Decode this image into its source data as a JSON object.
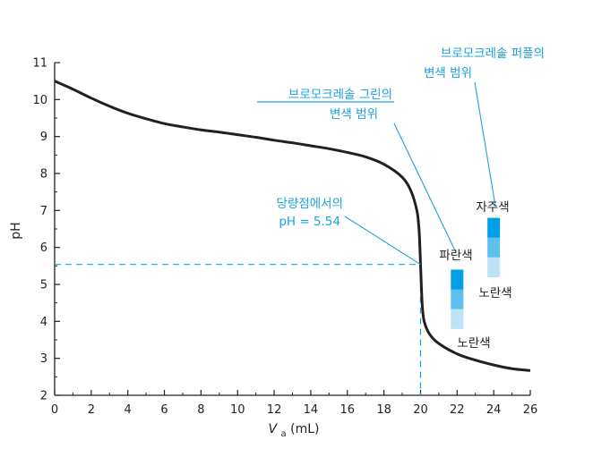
{
  "chart_data": {
    "type": "line",
    "xlabel_main": "V",
    "xlabel_sub": "a",
    "xlabel_unit": " (mL)",
    "ylabel": "pH",
    "xlim": [
      0,
      26
    ],
    "ylim": [
      2,
      11
    ],
    "x_ticks": [
      "0",
      "2",
      "4",
      "6",
      "8",
      "10",
      "12",
      "14",
      "16",
      "18",
      "20",
      "22",
      "24",
      "26"
    ],
    "y_ticks": [
      "2",
      "3",
      "4",
      "5",
      "6",
      "7",
      "8",
      "9",
      "10",
      "11"
    ],
    "grid": false,
    "series": [
      {
        "points": [
          [
            0,
            10.5
          ],
          [
            1,
            10.28
          ],
          [
            2,
            10.04
          ],
          [
            3,
            9.82
          ],
          [
            4,
            9.63
          ],
          [
            5,
            9.48
          ],
          [
            6,
            9.35
          ],
          [
            7,
            9.26
          ],
          [
            8,
            9.18
          ],
          [
            9,
            9.12
          ],
          [
            10,
            9.05
          ],
          [
            11,
            8.98
          ],
          [
            12,
            8.9
          ],
          [
            13,
            8.83
          ],
          [
            14,
            8.75
          ],
          [
            15,
            8.67
          ],
          [
            16,
            8.57
          ],
          [
            17,
            8.45
          ],
          [
            18,
            8.25
          ],
          [
            19,
            7.9
          ],
          [
            19.5,
            7.5
          ],
          [
            19.8,
            7.0
          ],
          [
            19.9,
            6.6
          ],
          [
            19.95,
            6.2
          ],
          [
            20.0,
            5.54
          ],
          [
            20.05,
            4.9
          ],
          [
            20.1,
            4.4
          ],
          [
            20.2,
            4.0
          ],
          [
            20.5,
            3.65
          ],
          [
            21,
            3.4
          ],
          [
            22,
            3.12
          ],
          [
            23,
            2.95
          ],
          [
            24,
            2.82
          ],
          [
            25,
            2.72
          ],
          [
            26,
            2.67
          ]
        ]
      }
    ],
    "equivalence": {
      "x": 20,
      "y": 5.54
    },
    "annotations": {
      "equivalence_label": [
        "당량점에서의",
        "pH = 5.54"
      ],
      "bcg_range": [
        "브로모크레솔 그린의",
        "변색 범위"
      ],
      "bcp_range": [
        "브로모크레솔 퍼플의",
        "변색 범위"
      ]
    },
    "indicators": [
      {
        "name": "bromocresol-green",
        "x": 22,
        "pH_range": [
          3.8,
          5.4
        ],
        "top_label": "파란색",
        "bottom_label": "노란색",
        "colors": [
          "#009fe8",
          "#5cbfee",
          "#bde3f6"
        ]
      },
      {
        "name": "bromocresol-purple",
        "x": 24,
        "pH_range": [
          5.2,
          6.8
        ],
        "top_label": "자주색",
        "bottom_label": "노란색",
        "colors": [
          "#009fe8",
          "#5cbfee",
          "#bde3f6"
        ]
      }
    ],
    "colors": {
      "curve": "#231f20",
      "accent": "#1ba1e2",
      "axis": "#231f20"
    }
  }
}
